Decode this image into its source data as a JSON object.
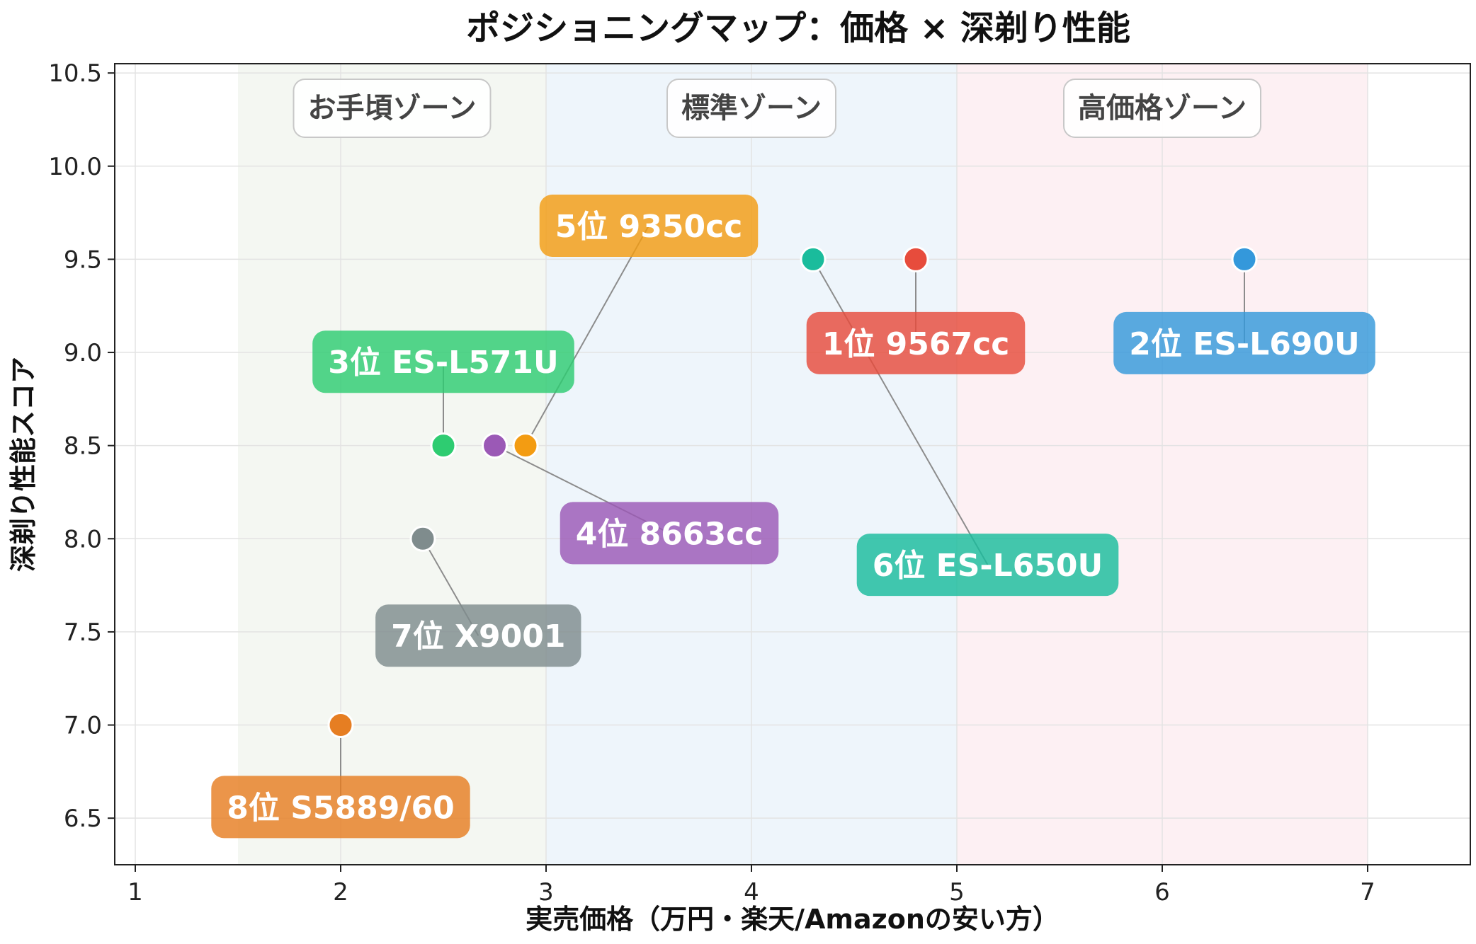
{
  "chart_data": {
    "type": "scatter",
    "title": "ポジショニングマップ：価格 × 深剃り性能",
    "xlabel": "実売価格（万円・楽天/Amazonの安い方）",
    "ylabel": "深剃り性能スコア",
    "xlim": [
      0.9,
      7.5
    ],
    "ylim": [
      6.25,
      10.55
    ],
    "x_ticks": [
      1,
      2,
      3,
      4,
      5,
      6,
      7
    ],
    "y_ticks": [
      6.5,
      7.0,
      7.5,
      8.0,
      8.5,
      9.0,
      9.5,
      10.0,
      10.5
    ],
    "x_tick_labels": [
      "1",
      "2",
      "3",
      "4",
      "5",
      "6",
      "7"
    ],
    "y_tick_labels": [
      "6.5",
      "7.0",
      "7.5",
      "8.0",
      "8.5",
      "9.0",
      "9.5",
      "10.0",
      "10.5"
    ],
    "grid": true,
    "zones": [
      {
        "label": "お手頃ゾーン",
        "x_start": 1.5,
        "x_end": 3.0,
        "color": "#f4f7f2"
      },
      {
        "label": "標準ゾーン",
        "x_start": 3.0,
        "x_end": 5.0,
        "color": "#eef5fb"
      },
      {
        "label": "高価格ゾーン",
        "x_start": 5.0,
        "x_end": 7.0,
        "color": "#fdf0f3"
      }
    ],
    "points": [
      {
        "label": "1位 9567cc",
        "x": 4.8,
        "y": 9.5,
        "color": "#e74c3c",
        "label_x": 4.8,
        "label_y": 9.05
      },
      {
        "label": "2位 ES-L690U",
        "x": 6.4,
        "y": 9.5,
        "color": "#3498db",
        "label_x": 6.4,
        "label_y": 9.05
      },
      {
        "label": "3位 ES-L571U",
        "x": 2.5,
        "y": 8.5,
        "color": "#2ecc71",
        "label_x": 2.5,
        "label_y": 8.95
      },
      {
        "label": "4位 8663cc",
        "x": 2.75,
        "y": 8.5,
        "color": "#9b59b6",
        "label_x": 3.6,
        "label_y": 8.03
      },
      {
        "label": "5位 9350cc",
        "x": 2.9,
        "y": 8.5,
        "color": "#f39c12",
        "label_x": 3.5,
        "label_y": 9.68
      },
      {
        "label": "6位 ES-L650U",
        "x": 4.3,
        "y": 9.5,
        "color": "#1abc9c",
        "label_x": 5.15,
        "label_y": 7.86
      },
      {
        "label": "7位 X9001",
        "x": 2.4,
        "y": 8.0,
        "color": "#7f8c8d",
        "label_x": 2.67,
        "label_y": 7.48
      },
      {
        "label": "8位 S5889/60",
        "x": 2.0,
        "y": 7.0,
        "color": "#e67e22",
        "label_x": 2.0,
        "label_y": 6.56
      }
    ]
  }
}
